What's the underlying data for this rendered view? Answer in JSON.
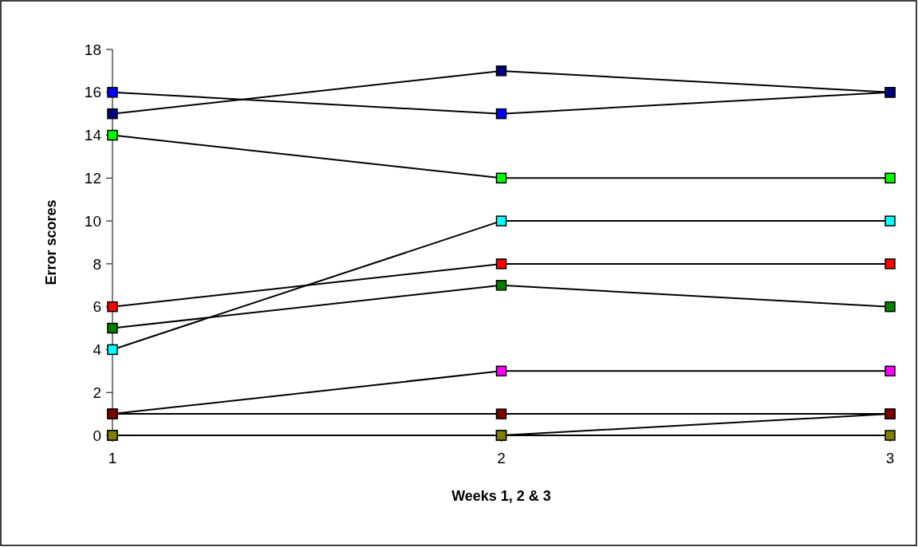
{
  "chart_data": {
    "type": "line",
    "xlabel": "Weeks 1, 2 & 3",
    "ylabel": "Error scores",
    "x": [
      1,
      2,
      3
    ],
    "xlim": [
      1,
      3
    ],
    "xticks": [
      1,
      2,
      3
    ],
    "ylim": [
      0,
      18
    ],
    "yticks": [
      0,
      2,
      4,
      6,
      8,
      10,
      12,
      14,
      16,
      18
    ],
    "grid": false,
    "marker": "square",
    "line_style": "solid",
    "series": [
      {
        "color": "#ffff00",
        "values": [
          0,
          0,
          1
        ]
      },
      {
        "color": "#0000ff",
        "values": [
          16,
          15,
          16
        ]
      },
      {
        "color": "#000080",
        "values": [
          15,
          17,
          16
        ]
      },
      {
        "color": "#00ff00",
        "values": [
          14,
          12,
          12
        ]
      },
      {
        "color": "#00ffff",
        "values": [
          4,
          10,
          10
        ]
      },
      {
        "color": "#ff0000",
        "values": [
          6,
          8,
          8
        ]
      },
      {
        "color": "#008000",
        "values": [
          5,
          7,
          6
        ]
      },
      {
        "color": "#ff00ff",
        "values": [
          1,
          3,
          3
        ]
      },
      {
        "color": "#800000",
        "values": [
          1,
          1,
          1
        ]
      },
      {
        "color": "#808000",
        "values": [
          0,
          0,
          0
        ]
      }
    ]
  }
}
